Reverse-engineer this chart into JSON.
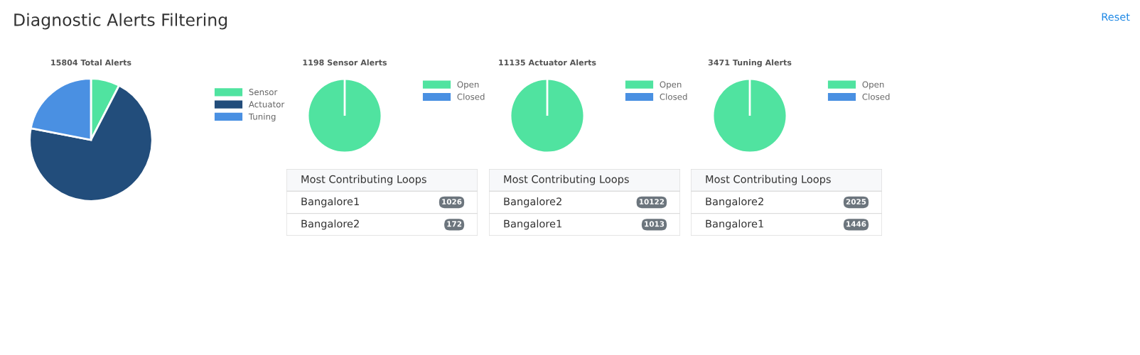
{
  "chart_data": [
    {
      "type": "other",
      "title": "Diagnostic Alerts Filtering",
      "annotations": [
        "Reset"
      ]
    },
    {
      "type": "pie",
      "title": "15804 Total Alerts",
      "categories": [
        "Sensor",
        "Actuator",
        "Tuning"
      ],
      "values": [
        7.58,
        70.46,
        21.96
      ],
      "colors": [
        "#50e3a0",
        "#224d7b",
        "#4a90e2"
      ],
      "legend": "right"
    },
    {
      "type": "pie",
      "title": "1198 Sensor Alerts",
      "categories": [
        "Open",
        "Closed"
      ],
      "values": [
        100,
        0
      ],
      "colors": [
        "#50e3a0",
        "#4a90e2"
      ],
      "legend": "right"
    },
    {
      "type": "pie",
      "title": "11135 Actuator Alerts",
      "categories": [
        "Open",
        "Closed"
      ],
      "values": [
        100,
        0
      ],
      "colors": [
        "#50e3a0",
        "#4a90e2"
      ],
      "legend": "right"
    },
    {
      "type": "pie",
      "title": "3471 Tuning Alerts",
      "categories": [
        "Open",
        "Closed"
      ],
      "values": [
        100,
        0
      ],
      "colors": [
        "#50e3a0",
        "#4a90e2"
      ],
      "legend": "right"
    },
    {
      "type": "other",
      "title": "Most Contributing Loops",
      "categories": [
        "Bangalore1",
        "Bangalore2"
      ],
      "values": [
        1026,
        172
      ],
      "data_labels": true
    },
    {
      "type": "other",
      "title": "Most Contributing Loops",
      "categories": [
        "Bangalore2",
        "Bangalore1"
      ],
      "values": [
        10122,
        1013
      ],
      "data_labels": true
    },
    {
      "type": "other",
      "title": "Most Contributing Loops",
      "categories": [
        "Bangalore2",
        "Bangalore1"
      ],
      "values": [
        2025,
        1446
      ],
      "data_labels": true
    }
  ]
}
